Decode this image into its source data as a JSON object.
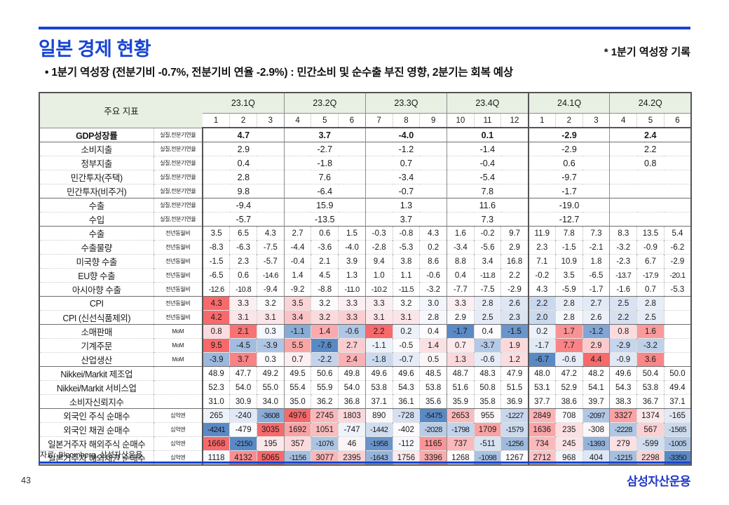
{
  "header": {
    "title": "일본 경제 현황",
    "note": "* 1분기 역성장 기록",
    "bullet": "• 1분기 역성장 (전분기비 -0.7%, 전분기비 연율 -2.9%) : 민간소비 및 순수출 부진 영향, 2분기는 회복 예상"
  },
  "style": {
    "accent_blue": "#1745d2",
    "table_header_green": "#e8efe3",
    "heat_low": "#5A8AC6",
    "heat_mid": "#FCFCFF",
    "heat_high": "#F8696B"
  },
  "table": {
    "corner_label": "주요 지표",
    "quarters": [
      "23.1Q",
      "23.2Q",
      "23.3Q",
      "23.4Q",
      "24.1Q",
      "24.2Q"
    ],
    "months": [
      "1",
      "2",
      "3",
      "4",
      "5",
      "6",
      "7",
      "8",
      "9",
      "10",
      "11",
      "12",
      "1",
      "2",
      "3",
      "4",
      "5",
      "6"
    ],
    "rows": [
      {
        "label": "GDP성장률",
        "unit": "실질,전분기연율",
        "type": "q",
        "bold": true,
        "values": [
          "4.7",
          "3.7",
          "-4.0",
          "0.1",
          "-2.9",
          "2.4"
        ]
      },
      {
        "label": "소비지출",
        "unit": "실질,전분기연율",
        "type": "q",
        "section": true,
        "values": [
          "2.9",
          "-2.7",
          "-1.2",
          "-1.4",
          "-2.9",
          "2.2"
        ]
      },
      {
        "label": "정부지출",
        "unit": "실질,전분기연율",
        "type": "q",
        "values": [
          "0.4",
          "-1.8",
          "0.7",
          "-0.4",
          "0.6",
          "0.8"
        ]
      },
      {
        "label": "민간투자(주택)",
        "unit": "실질,전분기연율",
        "type": "q",
        "values": [
          "2.8",
          "7.6",
          "-3.4",
          "-5.4",
          "-9.7",
          ""
        ]
      },
      {
        "label": "민간투자(비주거)",
        "unit": "실질,전분기연율",
        "type": "q",
        "values": [
          "9.8",
          "-6.4",
          "-0.7",
          "7.8",
          "-1.7",
          ""
        ]
      },
      {
        "label": "수출",
        "unit": "실질,전분기연율",
        "type": "q",
        "section": true,
        "values": [
          "-9.4",
          "15.9",
          "1.3",
          "11.6",
          "-19.0",
          ""
        ]
      },
      {
        "label": "수입",
        "unit": "실질,전분기연율",
        "type": "q",
        "values": [
          "-5.7",
          "-13.5",
          "3.7",
          "7.3",
          "-12.7",
          ""
        ]
      },
      {
        "label": "수출",
        "unit": "전년동월비",
        "type": "m",
        "section": true,
        "values": [
          "3.5",
          "6.5",
          "4.3",
          "2.7",
          "0.6",
          "1.5",
          "-0.3",
          "-0.8",
          "4.3",
          "1.6",
          "-0.2",
          "9.7",
          "11.9",
          "7.8",
          "7.3",
          "8.3",
          "13.5",
          "5.4"
        ]
      },
      {
        "label": "수출물량",
        "unit": "전년동월비",
        "type": "m",
        "values": [
          "-8.3",
          "-6.3",
          "-7.5",
          "-4.4",
          "-3.6",
          "-4.0",
          "-2.8",
          "-5.3",
          "0.2",
          "-3.4",
          "-5.6",
          "2.9",
          "2.3",
          "-1.5",
          "-2.1",
          "-3.2",
          "-0.9",
          "-6.2"
        ]
      },
      {
        "label": "미국향 수출",
        "unit": "전년동월비",
        "type": "m",
        "values": [
          "-1.5",
          "2.3",
          "-5.7",
          "-0.4",
          "2.1",
          "3.9",
          "9.4",
          "3.8",
          "8.6",
          "8.8",
          "3.4",
          "16.8",
          "7.1",
          "10.9",
          "1.8",
          "-2.3",
          "6.7",
          "-2.9"
        ]
      },
      {
        "label": "EU향 수출",
        "unit": "전년동월비",
        "type": "m",
        "values": [
          "-6.5",
          "0.6",
          "-14.6",
          "1.4",
          "4.5",
          "1.3",
          "1.0",
          "1.1",
          "-0.6",
          "0.4",
          "-11.8",
          "2.2",
          "-0.2",
          "3.5",
          "-6.5",
          "-13.7",
          "-17.9",
          "-20.1"
        ]
      },
      {
        "label": "아시아향 수출",
        "unit": "전년동월비",
        "type": "m",
        "values": [
          "-12.6",
          "-10.8",
          "-9.4",
          "-9.2",
          "-8.8",
          "-11.0",
          "-10.2",
          "-11.5",
          "-3.2",
          "-7.7",
          "-7.5",
          "-2.9",
          "4.3",
          "-5.9",
          "-1.7",
          "-1.6",
          "0.7",
          "-5.3"
        ]
      },
      {
        "label": "CPI",
        "unit": "전년동월비",
        "type": "m",
        "section": true,
        "heat": true,
        "anchors": [
          0,
          3.2,
          4.3
        ],
        "values": [
          "4.3",
          "3.3",
          "3.2",
          "3.5",
          "3.2",
          "3.3",
          "3.3",
          "3.2",
          "3.0",
          "3.3",
          "2.8",
          "2.6",
          "2.2",
          "2.8",
          "2.7",
          "2.5",
          "2.8",
          ""
        ]
      },
      {
        "label": "CPI (신선식품제외)",
        "unit": "전년동월비",
        "type": "m",
        "heat": true,
        "anchors": [
          0,
          2.9,
          4.2
        ],
        "values": [
          "4.2",
          "3.1",
          "3.1",
          "3.4",
          "3.2",
          "3.3",
          "3.1",
          "3.1",
          "2.8",
          "2.9",
          "2.5",
          "2.3",
          "2.0",
          "2.8",
          "2.6",
          "2.2",
          "2.5",
          ""
        ]
      },
      {
        "label": "소매판매",
        "unit": "MoM",
        "type": "m",
        "section": true,
        "heat": true,
        "values": [
          "0.8",
          "2.1",
          "0.3",
          "-1.1",
          "1.4",
          "-0.6",
          "2.2",
          "0.2",
          "0.4",
          "-1.7",
          "0.4",
          "-1.5",
          "0.2",
          "1.7",
          "-1.2",
          "0.8",
          "1.6",
          ""
        ]
      },
      {
        "label": "기계주문",
        "unit": "MoM",
        "type": "m",
        "heat": true,
        "values": [
          "9.5",
          "-4.5",
          "-3.9",
          "5.5",
          "-7.6",
          "2.7",
          "-1.1",
          "-0.5",
          "1.4",
          "0.7",
          "-3.7",
          "1.9",
          "-1.7",
          "7.7",
          "2.9",
          "-2.9",
          "-3.2",
          ""
        ]
      },
      {
        "label": "산업생산",
        "unit": "MoM",
        "type": "m",
        "heat": true,
        "values": [
          "-3.9",
          "3.7",
          "0.3",
          "0.7",
          "-2.2",
          "2.4",
          "-1.8",
          "-0.7",
          "0.5",
          "1.3",
          "-0.6",
          "1.2",
          "-6.7",
          "-0.6",
          "4.4",
          "-0.9",
          "3.6",
          ""
        ]
      },
      {
        "label": "Nikkei/Markit 제조업",
        "unit": "",
        "type": "m",
        "section": true,
        "values": [
          "48.9",
          "47.7",
          "49.2",
          "49.5",
          "50.6",
          "49.8",
          "49.6",
          "49.6",
          "48.5",
          "48.7",
          "48.3",
          "47.9",
          "48.0",
          "47.2",
          "48.2",
          "49.6",
          "50.4",
          "50.0"
        ]
      },
      {
        "label": "Nikkei/Markit 서비스업",
        "unit": "",
        "type": "m",
        "values": [
          "52.3",
          "54.0",
          "55.0",
          "55.4",
          "55.9",
          "54.0",
          "53.8",
          "54.3",
          "53.8",
          "51.6",
          "50.8",
          "51.5",
          "53.1",
          "52.9",
          "54.1",
          "54.3",
          "53.8",
          "49.4"
        ]
      },
      {
        "label": "소비자신뢰지수",
        "unit": "",
        "type": "m",
        "values": [
          "31.0",
          "30.9",
          "34.0",
          "35.0",
          "36.2",
          "36.8",
          "37.1",
          "36.1",
          "35.6",
          "35.9",
          "35.8",
          "36.9",
          "37.7",
          "38.6",
          "39.7",
          "38.3",
          "36.7",
          "37.1"
        ]
      },
      {
        "label": "외국인 주식 순매수",
        "unit": "십억엔",
        "type": "m",
        "section": true,
        "heat": true,
        "values": [
          "265",
          "-240",
          "-3608",
          "4976",
          "2745",
          "1803",
          "890",
          "-728",
          "-5475",
          "2653",
          "955",
          "-1227",
          "2849",
          "708",
          "-2097",
          "3327",
          "1374",
          "-165"
        ]
      },
      {
        "label": "외국인 채권 순매수",
        "unit": "십억엔",
        "type": "m",
        "heat": true,
        "values": [
          "-4241",
          "-479",
          "3035",
          "1692",
          "1051",
          "-747",
          "-1442",
          "-402",
          "-2028",
          "-1798",
          "1709",
          "-1579",
          "1636",
          "235",
          "-308",
          "-2228",
          "567",
          "-1565"
        ]
      },
      {
        "label": "일본거주자 해외주식 순매수",
        "unit": "십억엔",
        "type": "m",
        "heat": true,
        "values": [
          "1668",
          "-2150",
          "195",
          "357",
          "-1076",
          "46",
          "-1958",
          "-112",
          "1165",
          "737",
          "-511",
          "-1256",
          "734",
          "245",
          "-1393",
          "279",
          "-599",
          "-1005"
        ]
      },
      {
        "label": "일본거주자 해외채권 순매수",
        "unit": "십억엔",
        "type": "m",
        "heat": true,
        "values": [
          "1118",
          "4132",
          "5065",
          "-1156",
          "3077",
          "2395",
          "-1643",
          "1756",
          "3396",
          "1268",
          "-1098",
          "1267",
          "2712",
          "968",
          "404",
          "-1215",
          "2298",
          "-3350"
        ]
      }
    ]
  },
  "footer": {
    "source": "자료: Bloomberg, 삼성자산운용",
    "page_number": "43",
    "logo": "삼성자산운용"
  }
}
